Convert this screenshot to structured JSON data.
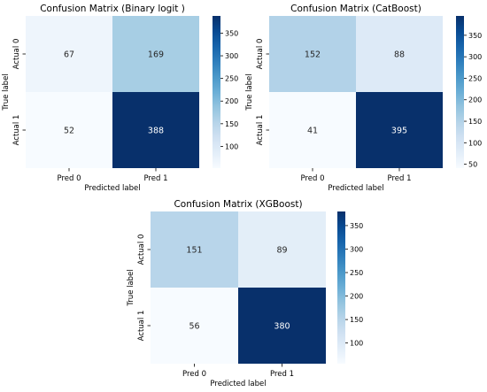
{
  "chart_data": [
    {
      "type": "heatmap",
      "title": "Confusion Matrix (Binary logit )",
      "xlabel": "Predicted label",
      "ylabel": "True label",
      "x_categories": [
        "Pred 0",
        "Pred 1"
      ],
      "y_categories": [
        "Actual 0",
        "Actual 1"
      ],
      "values": [
        [
          67,
          169
        ],
        [
          52,
          388
        ]
      ],
      "colormap": "Blues",
      "colorbar": {
        "min": 52,
        "max": 388,
        "ticks": [
          100,
          150,
          200,
          250,
          300,
          350
        ]
      }
    },
    {
      "type": "heatmap",
      "title": "Confusion Matrix (CatBoost)",
      "xlabel": "Predicted label",
      "ylabel": "True label",
      "x_categories": [
        "Pred 0",
        "Pred 1"
      ],
      "y_categories": [
        "Actual 0",
        "Actual 1"
      ],
      "values": [
        [
          152,
          88
        ],
        [
          41,
          395
        ]
      ],
      "colormap": "Blues",
      "colorbar": {
        "min": 41,
        "max": 395,
        "ticks": [
          50,
          100,
          150,
          200,
          250,
          300,
          350
        ]
      }
    },
    {
      "type": "heatmap",
      "title": "Confusion Matrix (XGBoost)",
      "xlabel": "Predicted label",
      "ylabel": "True label",
      "x_categories": [
        "Pred 0",
        "Pred 1"
      ],
      "y_categories": [
        "Actual 0",
        "Actual 1"
      ],
      "values": [
        [
          151,
          89
        ],
        [
          56,
          380
        ]
      ],
      "colormap": "Blues",
      "colorbar": {
        "min": 56,
        "max": 380,
        "ticks": [
          100,
          150,
          200,
          250,
          300,
          350
        ]
      }
    }
  ]
}
